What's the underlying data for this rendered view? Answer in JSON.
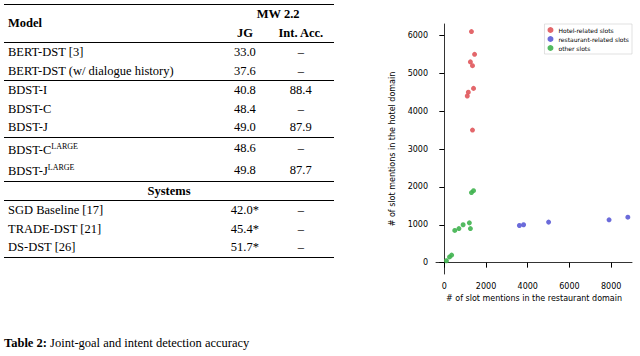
{
  "table": {
    "header": [
      "Model",
      "MW 2.2"
    ],
    "subheader": [
      "JG",
      "Int. Acc."
    ],
    "groups": [
      [
        {
          "model": "BERT-DST [3]",
          "jg": "33.0",
          "int": "–"
        },
        {
          "model": "BERT-DST (w/ dialogue history)",
          "jg": "37.6",
          "int": "–"
        }
      ],
      [
        {
          "model": "BDST-I",
          "jg": "40.8",
          "int": "88.4"
        },
        {
          "model": "BDST-C",
          "jg": "48.4",
          "int": "–"
        },
        {
          "model": "BDST-J",
          "jg": "49.0",
          "int": "87.9"
        }
      ],
      [
        {
          "model": "BDST-C",
          "sup": "LARGE",
          "jg": "48.6",
          "int": "–"
        },
        {
          "model": "BDST-J",
          "sup": "LARGE",
          "jg": "49.8",
          "int": "87.7"
        }
      ]
    ],
    "section": "Systems",
    "system_rows": [
      {
        "model": "SGD Baseline [17]",
        "jg": "42.0*",
        "int": "–"
      },
      {
        "model": "TRADE-DST [21]",
        "jg": "45.4*",
        "int": "–"
      },
      {
        "model": "DS-DST [26]",
        "jg": "51.7*",
        "int": "–"
      }
    ]
  },
  "caption": {
    "label": "Table 2:",
    "text": "Joint-goal and intent detection accuracy"
  },
  "chart_data": {
    "type": "scatter",
    "x_label": "# of slot mentions in the restaurant domain",
    "y_label": "# of slot mentions in the hotel domain",
    "xlim": [
      -400,
      9000
    ],
    "xticks": [
      0,
      2000,
      4000,
      6000,
      8000
    ],
    "ylim": [
      -300,
      6300
    ],
    "yticks": [
      0,
      1000,
      2000,
      3000,
      4000,
      5000,
      6000
    ],
    "grid": false,
    "legend": "upper right",
    "series": [
      {
        "name": "Hotel-related slots",
        "color": "#e0575b",
        "marker": "circle",
        "x": [
          1300,
          1450,
          1250,
          1350,
          1150,
          1100,
          1400,
          1350
        ],
        "values": [
          6100,
          5500,
          5300,
          5200,
          4500,
          4400,
          4600,
          3500
        ]
      },
      {
        "name": "restaurant-related slots",
        "color": "#5b5bd6",
        "marker": "circle",
        "x": [
          3600,
          3800,
          5000,
          7900,
          8800
        ],
        "values": [
          980,
          1000,
          1070,
          1130,
          1200
        ]
      },
      {
        "name": "other slots",
        "color": "#3fb34f",
        "marker": "circle",
        "x": [
          100,
          250,
          350,
          500,
          700,
          900,
          1200,
          1300,
          1400,
          1250
        ],
        "values": [
          50,
          150,
          200,
          850,
          900,
          1000,
          1050,
          1850,
          1900,
          900
        ]
      }
    ]
  }
}
